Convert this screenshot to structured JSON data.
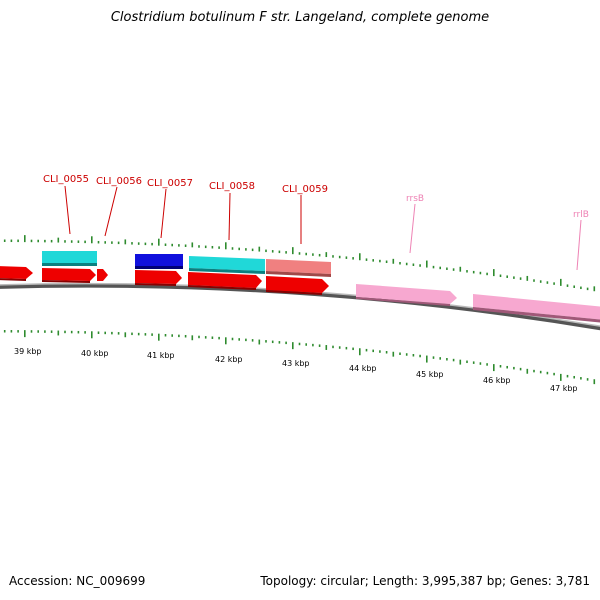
{
  "title": "Clostridium botulinum F str. Langeland, complete genome",
  "footer": {
    "accession": "Accession: NC_009699",
    "summary": "Topology: circular; Length: 3,995,387 bp; Genes: 3,781"
  },
  "colors": {
    "cds": "#ee0000",
    "feature_cyan": "#20d8d8",
    "feature_blue": "#1010dd",
    "feature_salmon": "#f08080",
    "rna": "#f7a8d0",
    "tick": "#2e8b2e",
    "backbone": "#888888"
  },
  "scale": {
    "unit": "kbp",
    "labels": [
      "39 kbp",
      "40 kbp",
      "41 kbp",
      "42 kbp",
      "43 kbp",
      "44 kbp",
      "45 kbp",
      "46 kbp",
      "47 kbp"
    ]
  },
  "labels": [
    {
      "text": "CLI_0055",
      "kind": "gene"
    },
    {
      "text": "CLI_0056",
      "kind": "gene"
    },
    {
      "text": "CLI_0057",
      "kind": "gene"
    },
    {
      "text": "CLI_0058",
      "kind": "gene"
    },
    {
      "text": "CLI_0059",
      "kind": "gene"
    },
    {
      "text": "rrsB",
      "kind": "rna"
    },
    {
      "text": "rrlB",
      "kind": "rna"
    }
  ]
}
